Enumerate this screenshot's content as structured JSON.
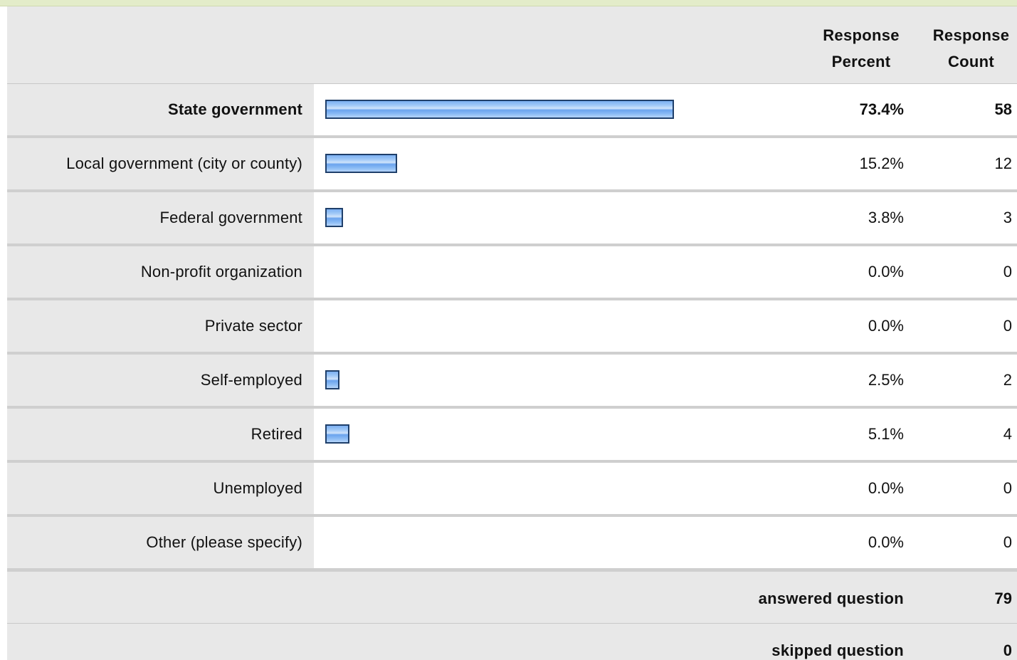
{
  "header": {
    "percent_label_line1": "Response",
    "percent_label_line2": "Percent",
    "count_label_line1": "Response",
    "count_label_line2": "Count"
  },
  "chart_data": {
    "type": "bar",
    "categories": [
      "State government",
      "Local government (city or county)",
      "Federal government",
      "Non-profit organization",
      "Private sector",
      "Self-employed",
      "Retired",
      "Unemployed",
      "Other (please specify)"
    ],
    "values": [
      73.4,
      15.2,
      3.8,
      0.0,
      0.0,
      2.5,
      5.1,
      0.0,
      0.0
    ],
    "counts": [
      58,
      12,
      3,
      0,
      0,
      2,
      4,
      0,
      0
    ],
    "percent_labels": [
      "73.4%",
      "15.2%",
      "3.8%",
      "0.0%",
      "0.0%",
      "2.5%",
      "5.1%",
      "0.0%",
      "0.0%"
    ],
    "count_labels": [
      "58",
      "12",
      "3",
      "0",
      "0",
      "2",
      "4",
      "0",
      "0"
    ],
    "highlighted_index": 0,
    "bar_color": "#7cb0f2",
    "bar_border_color": "#1f3f6a"
  },
  "summary": {
    "answered_label": "answered question",
    "answered_value": "79",
    "skipped_label": "skipped question",
    "skipped_value": "0"
  },
  "colors": {
    "top_strip": "#e3ecc9",
    "label_background": "#e8e8e8",
    "row_divider": "#cfcfcf"
  }
}
